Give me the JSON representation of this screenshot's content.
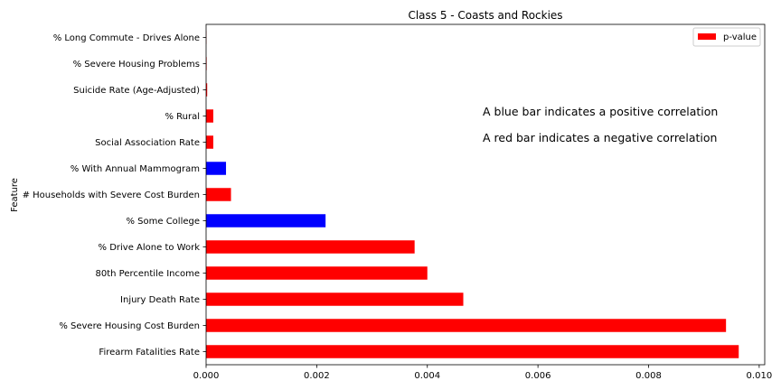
{
  "chart_data": {
    "type": "bar",
    "orientation": "horizontal",
    "title": "Class 5 - Coasts and Rockies",
    "xlabel": "",
    "ylabel": "Feature",
    "xlim": [
      0,
      0.0101
    ],
    "xticks": [
      "0.000",
      "0.002",
      "0.004",
      "0.006",
      "0.008",
      "0.010"
    ],
    "xtick_values": [
      0,
      0.002,
      0.004,
      0.006,
      0.008,
      0.01
    ],
    "grid": false,
    "legend": {
      "placement": "top-right",
      "entries": [
        {
          "label": "p-value",
          "color": "#ff0000"
        }
      ]
    },
    "categories": [
      "Firearm Fatalities Rate",
      "% Severe Housing Cost Burden",
      "Injury Death Rate",
      "80th Percentile Income",
      "% Drive Alone to Work",
      "% Some College",
      "# Households with Severe Cost Burden",
      "% With Annual Mammogram",
      "Social Association Rate",
      "% Rural",
      "Suicide Rate (Age-Adjusted)",
      "% Severe Housing Problems",
      "% Long Commute - Drives Alone"
    ],
    "series": [
      {
        "name": "p-value",
        "values": [
          0.00963,
          0.0094,
          0.00465,
          0.004,
          0.00377,
          0.00216,
          0.00045,
          0.00036,
          0.00013,
          0.00013,
          2e-05,
          1e-05,
          5e-06
        ],
        "colors": [
          "#ff0000",
          "#ff0000",
          "#ff0000",
          "#ff0000",
          "#ff0000",
          "#0000ff",
          "#ff0000",
          "#0000ff",
          "#ff0000",
          "#ff0000",
          "#ff0000",
          "#ff0000",
          "#ff0000"
        ]
      }
    ],
    "annotations": [
      "A blue bar indicates a positive correlation",
      "A red bar indicates a negative correlation"
    ]
  }
}
